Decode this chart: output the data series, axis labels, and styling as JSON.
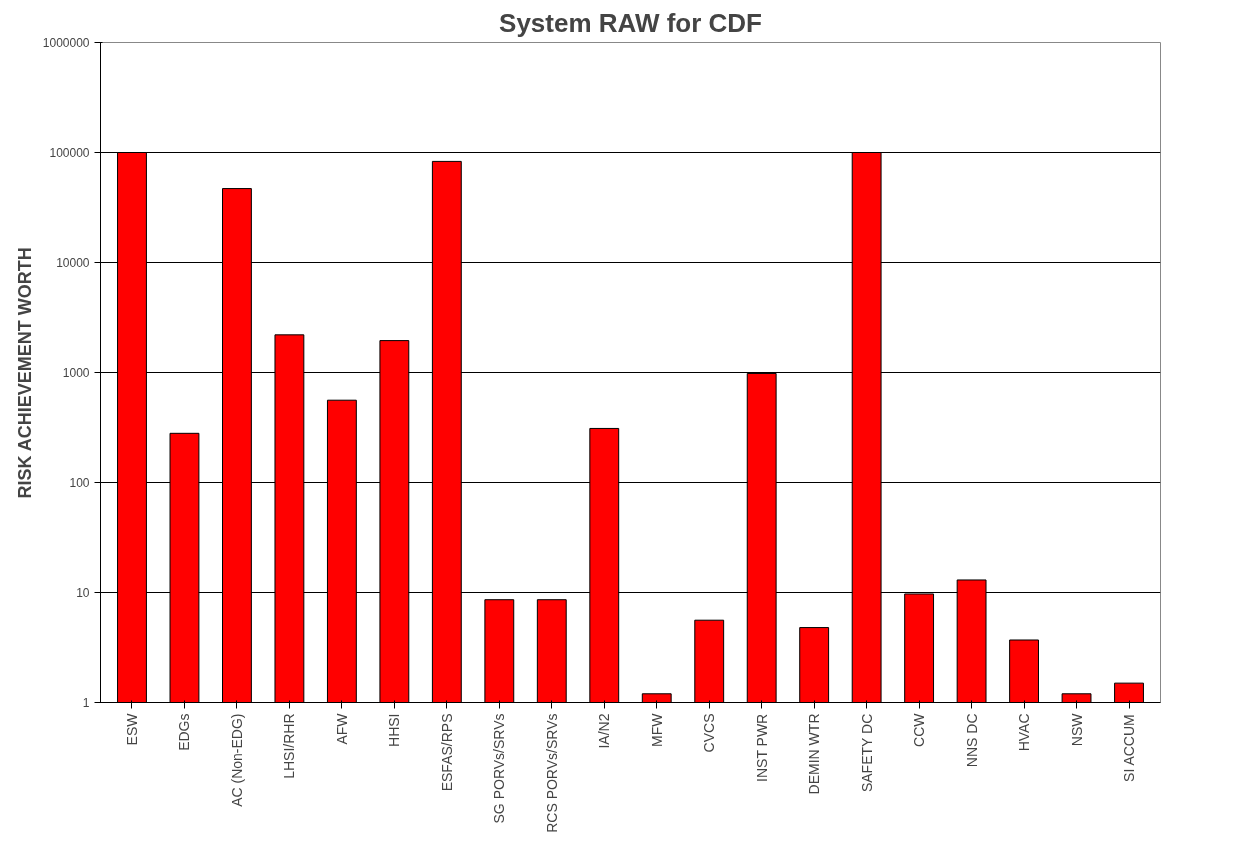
{
  "chart_data": {
    "type": "bar",
    "title": "System RAW for CDF",
    "ylabel": "RISK ACHIEVEMENT WORTH",
    "categories": [
      "ESW",
      "EDGs",
      "AC (Non-EDG)",
      "LHSI/RHR",
      "AFW",
      "HHSI",
      "ESFAS/RPS",
      "SG PORVs/SRVs",
      "RCS PORVs/SRVs",
      "IA/N2",
      "MFW",
      "CVCS",
      "INST PWR",
      "DEMIN WTR",
      "SAFETY DC",
      "CCW",
      "NNS DC",
      "HVAC",
      "NSW",
      "SI ACCUM"
    ],
    "values": [
      100000,
      280,
      47000,
      2200,
      560,
      1950,
      83000,
      8.6,
      8.6,
      310,
      1.2,
      5.6,
      980,
      4.8,
      100000,
      9.7,
      13,
      3.7,
      1.2,
      1.5
    ],
    "color": "#ff0000",
    "log": true,
    "ylim": [
      1,
      1000000
    ],
    "yticks": [
      1,
      10,
      100,
      1000,
      10000,
      100000,
      1000000
    ],
    "grid": "y"
  }
}
